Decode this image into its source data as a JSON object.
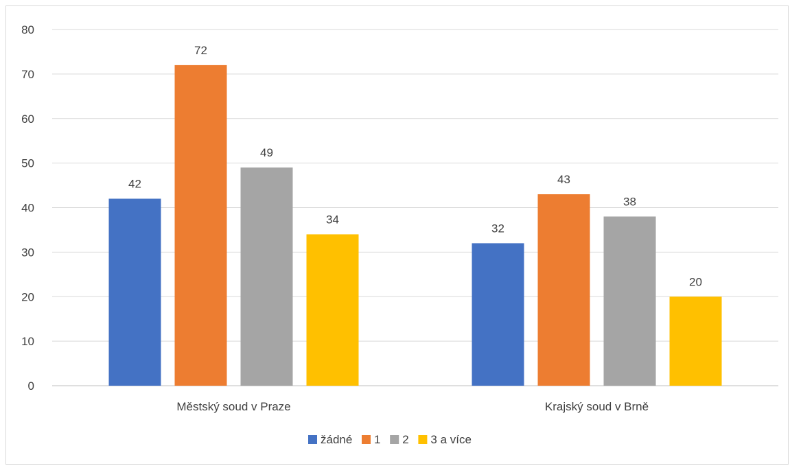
{
  "chart_data": {
    "type": "bar",
    "title": "",
    "xlabel": "",
    "ylabel": "",
    "categories": [
      "Městský soud v Praze",
      "Krajský soud v Brně"
    ],
    "series": [
      {
        "name": "žádné",
        "color": "#4472c4",
        "values": [
          42,
          32
        ]
      },
      {
        "name": "1",
        "color": "#ed7d31",
        "values": [
          72,
          43
        ]
      },
      {
        "name": "2",
        "color": "#a5a5a5",
        "values": [
          49,
          38
        ]
      },
      {
        "name": "3 a více",
        "color": "#ffc000",
        "values": [
          34,
          20
        ]
      }
    ],
    "ylim": [
      0,
      80
    ],
    "yticks": [
      0,
      10,
      20,
      30,
      40,
      50,
      60,
      70,
      80
    ],
    "grid": true,
    "legend_position": "bottom",
    "data_labels": true
  }
}
